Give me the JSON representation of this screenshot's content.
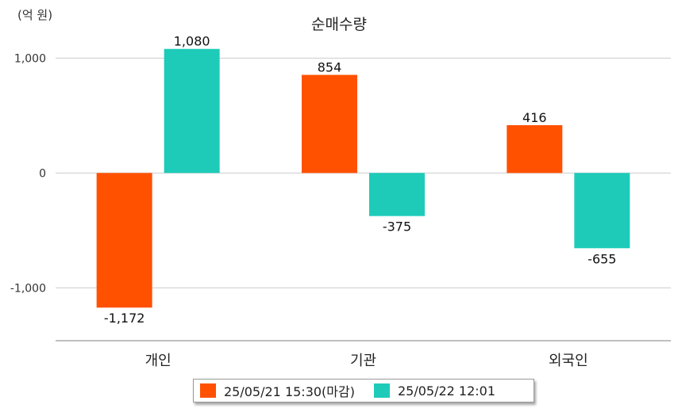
{
  "unit_label": "(억 원)",
  "colors": {
    "series1": "#ff5100",
    "series2": "#1ecbb9",
    "grid": "#cccccc",
    "axis": "#999999"
  },
  "chart_data": {
    "type": "bar",
    "title": "순매수량",
    "categories": [
      "개인",
      "기관",
      "외국인"
    ],
    "series": [
      {
        "name": "25/05/21 15:30(마감)",
        "values": [
          -1172,
          854,
          416
        ],
        "labels": [
          "-1,172",
          "854",
          "416"
        ]
      },
      {
        "name": "25/05/22 12:01",
        "values": [
          1080,
          -375,
          -655
        ],
        "labels": [
          "1,080",
          "-375",
          "-655"
        ]
      }
    ],
    "yticks": [
      1000,
      0,
      -1000
    ],
    "ytick_labels": [
      "1,000",
      "0",
      "-1,000"
    ],
    "ylim": [
      -1460,
      1230
    ],
    "grid": true,
    "legend": "bottom"
  }
}
